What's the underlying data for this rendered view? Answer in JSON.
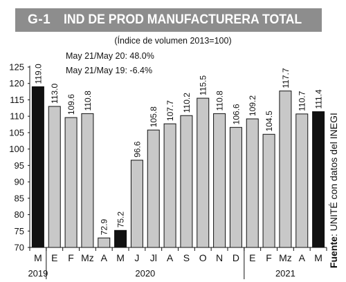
{
  "header": {
    "code": "G-1",
    "title": "IND DE PROD MANUFACTURERA TOTAL",
    "subtitle": "(Índice de volumen 2013=100)",
    "note_1": "May 21/May 20: 48.0%",
    "note_2": "May 21/May 19: -6.4%"
  },
  "source": {
    "label": "Fuente",
    "text": ": UNITÉ con datos del INEGI"
  },
  "colors": {
    "bar_highlight": "#111111",
    "bar_normal": "#c8c8c8",
    "bar_outline": "#111111",
    "title_bar": "#8d8d8d"
  },
  "chart_data": {
    "type": "bar",
    "categories": [
      "M",
      "E",
      "F",
      "Mz",
      "A",
      "M",
      "J",
      "Jl",
      "A",
      "S",
      "O",
      "N",
      "D",
      "E",
      "F",
      "Mz",
      "A",
      "M"
    ],
    "values": [
      119.0,
      113.0,
      109.6,
      110.8,
      72.9,
      75.2,
      96.6,
      105.8,
      107.7,
      110.2,
      115.5,
      110.8,
      106.6,
      109.2,
      104.5,
      117.7,
      110.7,
      111.4
    ],
    "value_labels": [
      "119.0",
      "113.0",
      "109.6",
      "110.8",
      "72.9",
      "75.2",
      "96.6",
      "105.8",
      "107.7",
      "110.2",
      "115.5",
      "110.8",
      "106.6",
      "109.2",
      "104.5",
      "117.7",
      "110.7",
      "111.4"
    ],
    "highlight": [
      true,
      false,
      false,
      false,
      false,
      true,
      false,
      false,
      false,
      false,
      false,
      false,
      false,
      false,
      false,
      false,
      false,
      true
    ],
    "years": [
      {
        "label": "2019",
        "start": 0,
        "end": 0
      },
      {
        "label": "2020",
        "start": 1,
        "end": 12
      },
      {
        "label": "2021",
        "start": 13,
        "end": 17
      }
    ],
    "y_ticks": [
      "70",
      "75",
      "80",
      "85",
      "90",
      "95",
      "100",
      "105",
      "110",
      "115",
      "120",
      "125"
    ],
    "ylim": [
      70,
      125
    ],
    "grid": false,
    "legend": "none"
  }
}
